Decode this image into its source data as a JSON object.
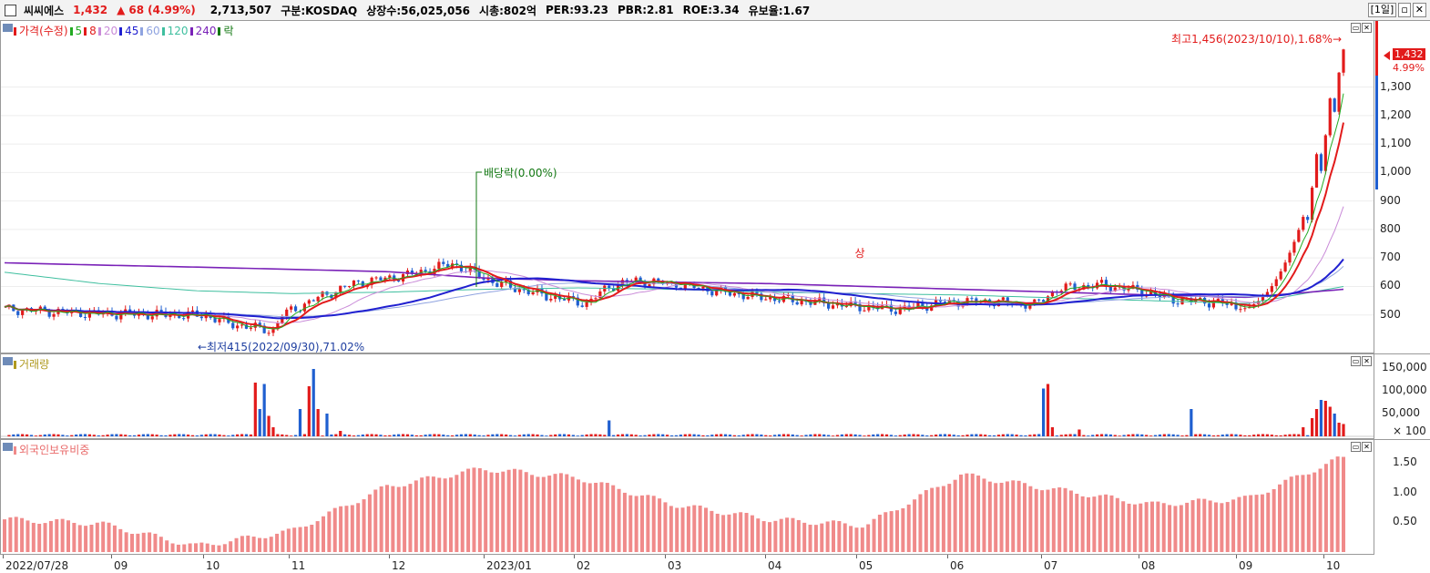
{
  "header": {
    "name": "씨씨에스",
    "price": "1,432",
    "arrow": "▲",
    "change": "68",
    "change_pct": "(4.99%)",
    "volume": "2,713,507",
    "market": "구분:KOSDAQ",
    "shares": "상장수:56,025,056",
    "marketcap": "시총:802억",
    "per": "PER:93.23",
    "pbr": "PBR:2.81",
    "roe": "ROE:3.34",
    "float": "유보율:1.67",
    "period": "[1일]"
  },
  "price_panel": {
    "legend": [
      {
        "text": "가격(수정)",
        "color": "#e21b1b"
      },
      {
        "text": "5",
        "color": "#22aa22"
      },
      {
        "text": "8",
        "color": "#e21b1b"
      },
      {
        "text": "20",
        "color": "#c98bd8"
      },
      {
        "text": "45",
        "color": "#2020d0"
      },
      {
        "text": "60",
        "color": "#8fa3e0"
      },
      {
        "text": "120",
        "color": "#3fbf9f"
      },
      {
        "text": "240",
        "color": "#7a22b8"
      },
      {
        "text": "락",
        "color": "#117711"
      }
    ],
    "annotations": {
      "high": "최고1,456(2023/10/10),1.68%→",
      "low": "←최저415(2022/09/30),71.02%",
      "dividend": "배당락(0.00%)",
      "limit_up": "상"
    },
    "last_price_label": "1,432",
    "last_change_label": "4.99%",
    "yticks": [
      "1,300",
      "1,200",
      "1,100",
      "1,000",
      "900",
      "800",
      "700",
      "600",
      "500"
    ]
  },
  "volume_panel": {
    "legend": "거래량",
    "yticks": [
      "150,000",
      "100,000",
      "50,000",
      "× 100"
    ]
  },
  "foreign_panel": {
    "legend": "외국인보유비중",
    "yticks": [
      "1.50",
      "1.00",
      "0.50"
    ]
  },
  "xaxis": [
    "2022/07/28",
    "09",
    "10",
    "11",
    "12",
    "2023/01",
    "02",
    "03",
    "04",
    "05",
    "06",
    "07",
    "08",
    "09",
    "10"
  ],
  "colors": {
    "up": "#e21b1b",
    "down": "#1f5fd0",
    "foreign": "#f08a8a"
  },
  "chart_data": [
    {
      "type": "candlestick",
      "title": "씨씨에스",
      "x": [
        "2022/07/28",
        "2022/09",
        "2022/10",
        "2022/11",
        "2022/12",
        "2023/01",
        "2023/02",
        "2023/03",
        "2023/04",
        "2023/05",
        "2023/06",
        "2023/07",
        "2023/08",
        "2023/09",
        "2023/10"
      ],
      "series": [
        {
          "name": "가격(수정)",
          "close": [
            520,
            500,
            440,
            560,
            690,
            520,
            600,
            530,
            540,
            640,
            600,
            545,
            510,
            520,
            1432
          ]
        },
        {
          "name": "240",
          "values": [
            683,
            675,
            668,
            660,
            652,
            630,
            620,
            615,
            610,
            600,
            590,
            580,
            570,
            562,
            590
          ]
        },
        {
          "name": "120",
          "values": [
            650,
            610,
            585,
            575,
            580,
            590,
            595,
            590,
            580,
            575,
            570,
            560,
            550,
            540,
            600
          ]
        }
      ],
      "annotations": [
        {
          "x": "2023/10/10",
          "y": 1456,
          "text": "최고1,456(2023/10/10),1.68%"
        },
        {
          "x": "2022/09/30",
          "y": 415,
          "text": "최저415(2022/09/30),71.02%"
        },
        {
          "x": "2022/12",
          "y": 580,
          "text": "배당락(0.00%)"
        }
      ],
      "ylim": [
        400,
        1500
      ]
    },
    {
      "type": "bar",
      "title": "거래량",
      "ylabel": "× 100",
      "categories": [
        "2022/10",
        "2022/11",
        "2022/12",
        "2023/01",
        "2023/05",
        "2023/06",
        "2023/09",
        "2023/10"
      ],
      "values": [
        118000,
        148000,
        8000,
        35000,
        115000,
        55000,
        80000,
        27135
      ],
      "ylim": [
        0,
        160000
      ]
    },
    {
      "type": "bar",
      "title": "외국인보유비중",
      "categories": [
        "2022/07/28",
        "2022/09",
        "2022/10",
        "2022/11",
        "2022/12",
        "2023/01",
        "2023/02",
        "2023/03",
        "2023/04",
        "2023/05",
        "2023/06",
        "2023/07",
        "2023/08",
        "2023/09",
        "2023/10"
      ],
      "values": [
        0.55,
        0.48,
        0.1,
        0.35,
        1.1,
        1.4,
        1.25,
        0.8,
        0.55,
        0.45,
        1.3,
        1.05,
        0.8,
        0.9,
        1.6
      ],
      "ylim": [
        0,
        1.7
      ]
    }
  ]
}
